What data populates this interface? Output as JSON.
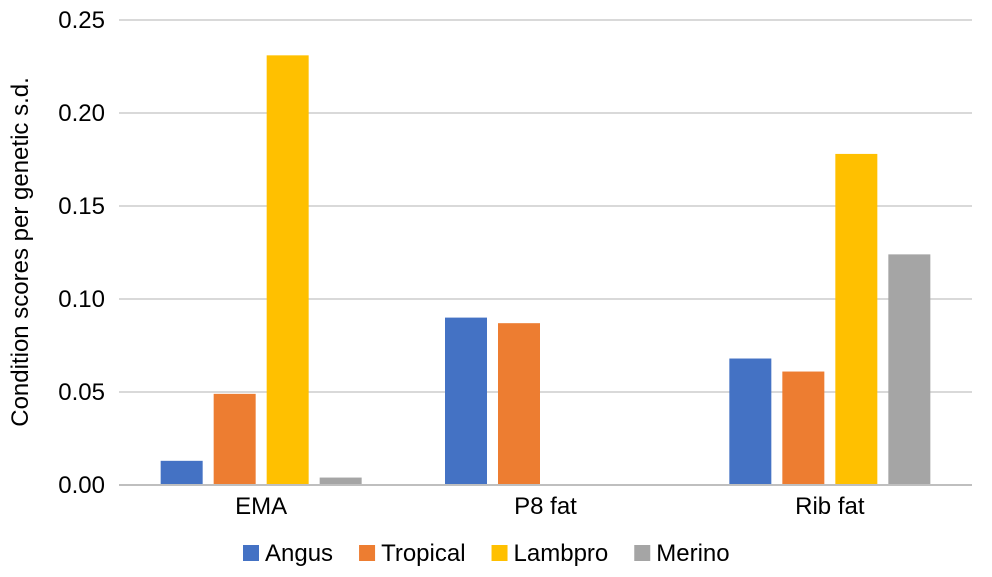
{
  "chart_data": {
    "type": "bar",
    "title": "",
    "xlabel": "",
    "ylabel": "Condition scores per genetic s.d.",
    "categories": [
      "EMA",
      "P8 fat",
      "Rib fat"
    ],
    "ylim": [
      0,
      0.25
    ],
    "yticks": [
      0.0,
      0.05,
      0.1,
      0.15,
      0.2,
      0.25
    ],
    "ytick_labels": [
      "0.00",
      "0.05",
      "0.10",
      "0.15",
      "0.20",
      "0.25"
    ],
    "grid": true,
    "legend_position": "bottom",
    "series": [
      {
        "name": "Angus",
        "color": "#4472c4",
        "values": [
          0.013,
          0.09,
          0.068
        ]
      },
      {
        "name": "Tropical",
        "color": "#ed7d31",
        "values": [
          0.049,
          0.087,
          0.061
        ]
      },
      {
        "name": "Lambpro",
        "color": "#ffc000",
        "values": [
          0.231,
          null,
          0.178
        ]
      },
      {
        "name": "Merino",
        "color": "#a5a5a5",
        "values": [
          0.004,
          null,
          0.124
        ]
      }
    ]
  }
}
